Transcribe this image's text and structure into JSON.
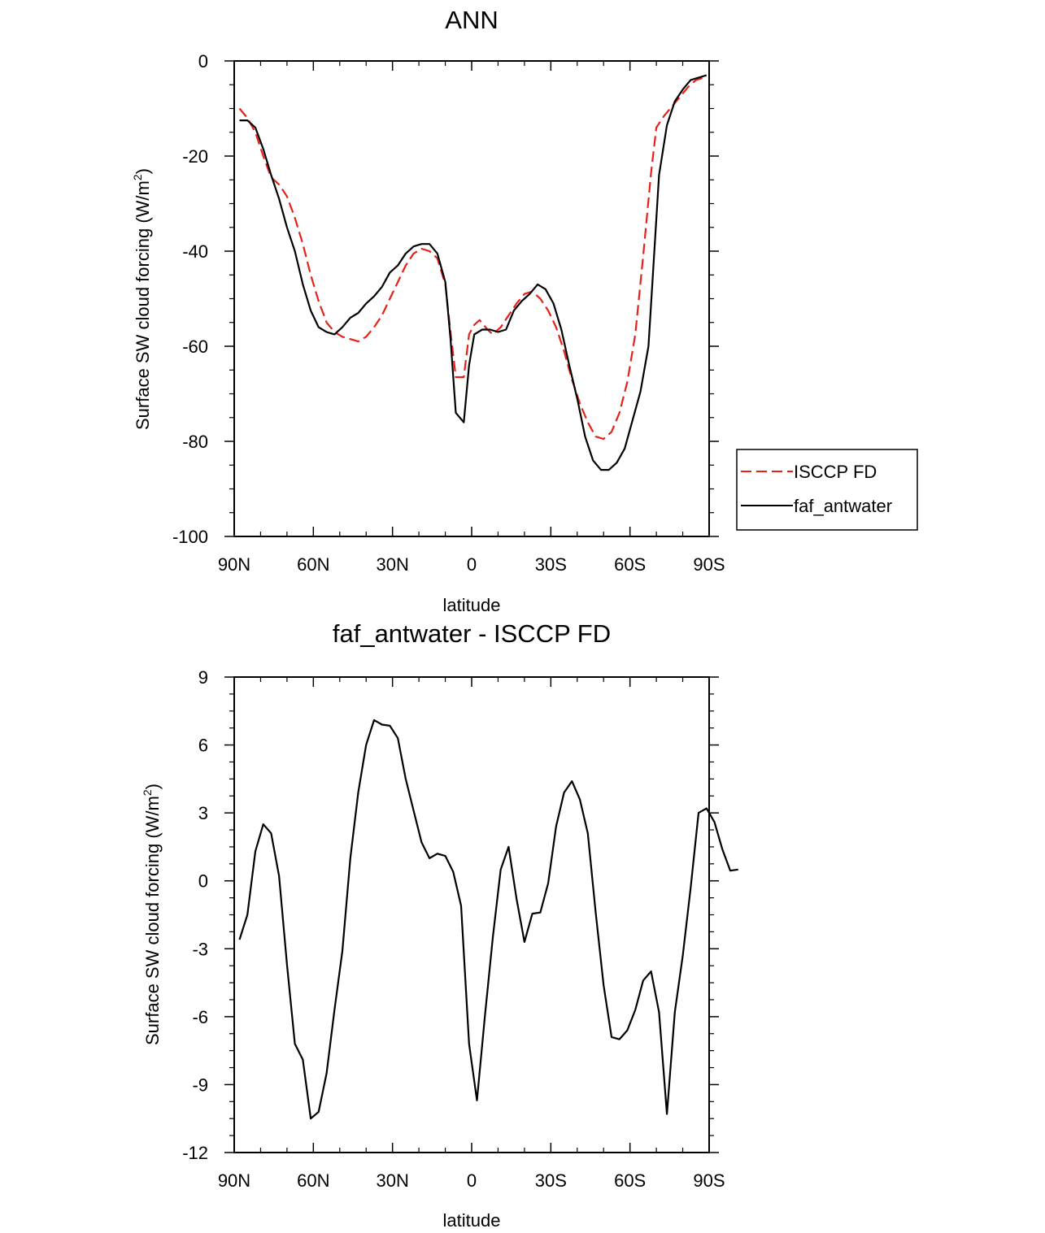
{
  "chart_data": [
    {
      "type": "line",
      "title": "ANN",
      "xlabel": "latitude",
      "ylabel": "Surface SW cloud forcing (W/m",
      "ylabel_sup": "2",
      "ylabel_end": ")",
      "xlim": [
        90,
        -90
      ],
      "ylim": [
        -100,
        0
      ],
      "x_ticks": [
        90,
        60,
        30,
        0,
        -30,
        -60,
        -90
      ],
      "x_tick_labels": [
        "90N",
        "60N",
        "30N",
        "0",
        "30S",
        "60S",
        "90S"
      ],
      "y_ticks": [
        0,
        -20,
        -40,
        -60,
        -80,
        -100
      ],
      "y_tick_labels": [
        "0",
        "-20",
        "-40",
        "-60",
        "-80",
        "-100"
      ],
      "legend_position": "right",
      "series": [
        {
          "name": "ISCCP FD",
          "color": "#e8201a",
          "dash": "dashed",
          "points": [
            [
              88,
              -10
            ],
            [
              85,
              -12
            ],
            [
              82,
              -15
            ],
            [
              79,
              -20
            ],
            [
              76,
              -24.5
            ],
            [
              73,
              -26
            ],
            [
              70,
              -28.5
            ],
            [
              67,
              -33
            ],
            [
              64,
              -38.5
            ],
            [
              61,
              -45
            ],
            [
              58,
              -50.5
            ],
            [
              55,
              -55
            ],
            [
              52,
              -57
            ],
            [
              49,
              -58
            ],
            [
              46,
              -58.5
            ],
            [
              43,
              -59
            ],
            [
              40,
              -58
            ],
            [
              37,
              -56
            ],
            [
              34,
              -53.5
            ],
            [
              31,
              -50
            ],
            [
              28,
              -46.5
            ],
            [
              25,
              -43
            ],
            [
              22,
              -40.5
            ],
            [
              19,
              -39.5
            ],
            [
              16,
              -40
            ],
            [
              13,
              -41.5
            ],
            [
              10,
              -47
            ],
            [
              8,
              -57
            ],
            [
              6,
              -66.5
            ],
            [
              3,
              -66.5
            ],
            [
              1,
              -57.5
            ],
            [
              -1,
              -55.5
            ],
            [
              -3,
              -54.5
            ],
            [
              -6,
              -56.5
            ],
            [
              -8,
              -57.5
            ],
            [
              -11,
              -56
            ],
            [
              -14,
              -53.5
            ],
            [
              -17,
              -51
            ],
            [
              -20,
              -49
            ],
            [
              -23,
              -48.5
            ],
            [
              -26,
              -50
            ],
            [
              -29,
              -52.5
            ],
            [
              -32,
              -56
            ],
            [
              -35,
              -61
            ],
            [
              -38,
              -67
            ],
            [
              -41,
              -72
            ],
            [
              -44,
              -76
            ],
            [
              -47,
              -79
            ],
            [
              -50,
              -79.5
            ],
            [
              -53,
              -78
            ],
            [
              -56,
              -74
            ],
            [
              -59,
              -67.5
            ],
            [
              -62,
              -57.5
            ],
            [
              -65,
              -41
            ],
            [
              -68,
              -23.5
            ],
            [
              -70,
              -14
            ],
            [
              -73,
              -11.5
            ],
            [
              -76,
              -9.5
            ],
            [
              -79,
              -7.5
            ],
            [
              -82,
              -5.5
            ],
            [
              -85,
              -4
            ],
            [
              -88,
              -3.5
            ]
          ]
        },
        {
          "name": "faf_antwater",
          "color": "#000000",
          "dash": "solid",
          "points": [
            [
              88,
              -12.5
            ],
            [
              85,
              -12.5
            ],
            [
              82,
              -14
            ],
            [
              79,
              -18.5
            ],
            [
              76,
              -24
            ],
            [
              73,
              -29
            ],
            [
              70,
              -35
            ],
            [
              67,
              -40
            ],
            [
              64,
              -47
            ],
            [
              61,
              -52.5
            ],
            [
              58,
              -56
            ],
            [
              55,
              -57
            ],
            [
              52,
              -57.5
            ],
            [
              49,
              -56
            ],
            [
              46,
              -54
            ],
            [
              43,
              -53
            ],
            [
              40,
              -51
            ],
            [
              37,
              -49.5
            ],
            [
              34,
              -47.5
            ],
            [
              31,
              -44.5
            ],
            [
              28,
              -43
            ],
            [
              25,
              -40.5
            ],
            [
              22,
              -39
            ],
            [
              19,
              -38.5
            ],
            [
              16,
              -38.5
            ],
            [
              13,
              -40.5
            ],
            [
              10,
              -46.5
            ],
            [
              8,
              -58.5
            ],
            [
              6,
              -74
            ],
            [
              3,
              -76
            ],
            [
              1,
              -64
            ],
            [
              -1,
              -57.5
            ],
            [
              -4,
              -56.5
            ],
            [
              -7,
              -56.5
            ],
            [
              -10,
              -57
            ],
            [
              -13,
              -56.5
            ],
            [
              -16,
              -52.5
            ],
            [
              -19,
              -50.5
            ],
            [
              -22,
              -49
            ],
            [
              -25,
              -47
            ],
            [
              -28,
              -48
            ],
            [
              -31,
              -51
            ],
            [
              -34,
              -56.5
            ],
            [
              -37,
              -64
            ],
            [
              -40,
              -71
            ],
            [
              -43,
              -79
            ],
            [
              -46,
              -84
            ],
            [
              -49,
              -86
            ],
            [
              -52,
              -86
            ],
            [
              -55,
              -84.5
            ],
            [
              -58,
              -81.5
            ],
            [
              -61,
              -75.5
            ],
            [
              -64,
              -69.5
            ],
            [
              -67,
              -60
            ],
            [
              -69,
              -42
            ],
            [
              -71,
              -24
            ],
            [
              -74,
              -13.5
            ],
            [
              -77,
              -8.5
            ],
            [
              -80,
              -6
            ],
            [
              -83,
              -4
            ],
            [
              -86,
              -3.5
            ],
            [
              -89,
              -3
            ]
          ]
        }
      ]
    },
    {
      "type": "line",
      "title": "faf_antwater - ISCCP FD",
      "xlabel": "latitude",
      "ylabel": "Surface SW cloud forcing (W/m",
      "ylabel_sup": "2",
      "ylabel_end": ")",
      "xlim": [
        90,
        -90
      ],
      "ylim": [
        -12,
        9
      ],
      "x_ticks": [
        90,
        60,
        30,
        0,
        -30,
        -60,
        -90
      ],
      "x_tick_labels": [
        "90N",
        "60N",
        "30N",
        "0",
        "30S",
        "60S",
        "90S"
      ],
      "y_ticks": [
        9,
        6,
        3,
        0,
        -3,
        -6,
        -9,
        -12
      ],
      "y_tick_labels": [
        "9",
        "6",
        "3",
        "0",
        "-3",
        "-6",
        "-9",
        "-12"
      ],
      "series": [
        {
          "color": "#000000",
          "dash": "solid",
          "points": [
            [
              88,
              -2.6
            ],
            [
              85,
              -1.5
            ],
            [
              82,
              1.3
            ],
            [
              79,
              2.5
            ],
            [
              76,
              2.1
            ],
            [
              73,
              0.2
            ],
            [
              70,
              -3.7
            ],
            [
              67,
              -7.2
            ],
            [
              64,
              -7.9
            ],
            [
              61,
              -10.5
            ],
            [
              58,
              -10.2
            ],
            [
              55,
              -8.5
            ],
            [
              52,
              -5.7
            ],
            [
              49,
              -3.1
            ],
            [
              46,
              1.0
            ],
            [
              43,
              3.9
            ],
            [
              40,
              6.0
            ],
            [
              37,
              7.1
            ],
            [
              34,
              6.9
            ],
            [
              31,
              6.85
            ],
            [
              28,
              6.3
            ],
            [
              25,
              4.5
            ],
            [
              22,
              3.1
            ],
            [
              19,
              1.7
            ],
            [
              16,
              1.0
            ],
            [
              13,
              1.2
            ],
            [
              10,
              1.1
            ],
            [
              7,
              0.4
            ],
            [
              4,
              -1.1
            ],
            [
              1,
              -7.2
            ],
            [
              -2,
              -9.7
            ],
            [
              -5,
              -6.0
            ],
            [
              -8,
              -2.5
            ],
            [
              -11,
              0.5
            ],
            [
              -14,
              1.5
            ],
            [
              -17,
              -0.8
            ],
            [
              -20,
              -2.7
            ],
            [
              -23,
              -1.45
            ],
            [
              -26,
              -1.4
            ],
            [
              -29,
              -0.1
            ],
            [
              -32,
              2.4
            ],
            [
              -35,
              3.9
            ],
            [
              -38,
              4.4
            ],
            [
              -41,
              3.6
            ],
            [
              -44,
              2.1
            ],
            [
              -47,
              -1.4
            ],
            [
              -50,
              -4.6
            ],
            [
              -53,
              -6.9
            ],
            [
              -56,
              -7.0
            ],
            [
              -59,
              -6.6
            ],
            [
              -62,
              -5.7
            ],
            [
              -65,
              -4.4
            ],
            [
              -68,
              -4.0
            ],
            [
              -71,
              -5.8
            ],
            [
              -74,
              -10.3
            ],
            [
              -77,
              -5.8
            ],
            [
              -80,
              -3.3
            ],
            [
              -83,
              -0.3
            ],
            [
              -86,
              3.0
            ],
            [
              -89,
              3.2
            ],
            [
              -92,
              2.6
            ],
            [
              -95,
              1.4
            ],
            [
              -98,
              0.45
            ],
            [
              -101,
              0.5
            ]
          ]
        }
      ]
    }
  ]
}
